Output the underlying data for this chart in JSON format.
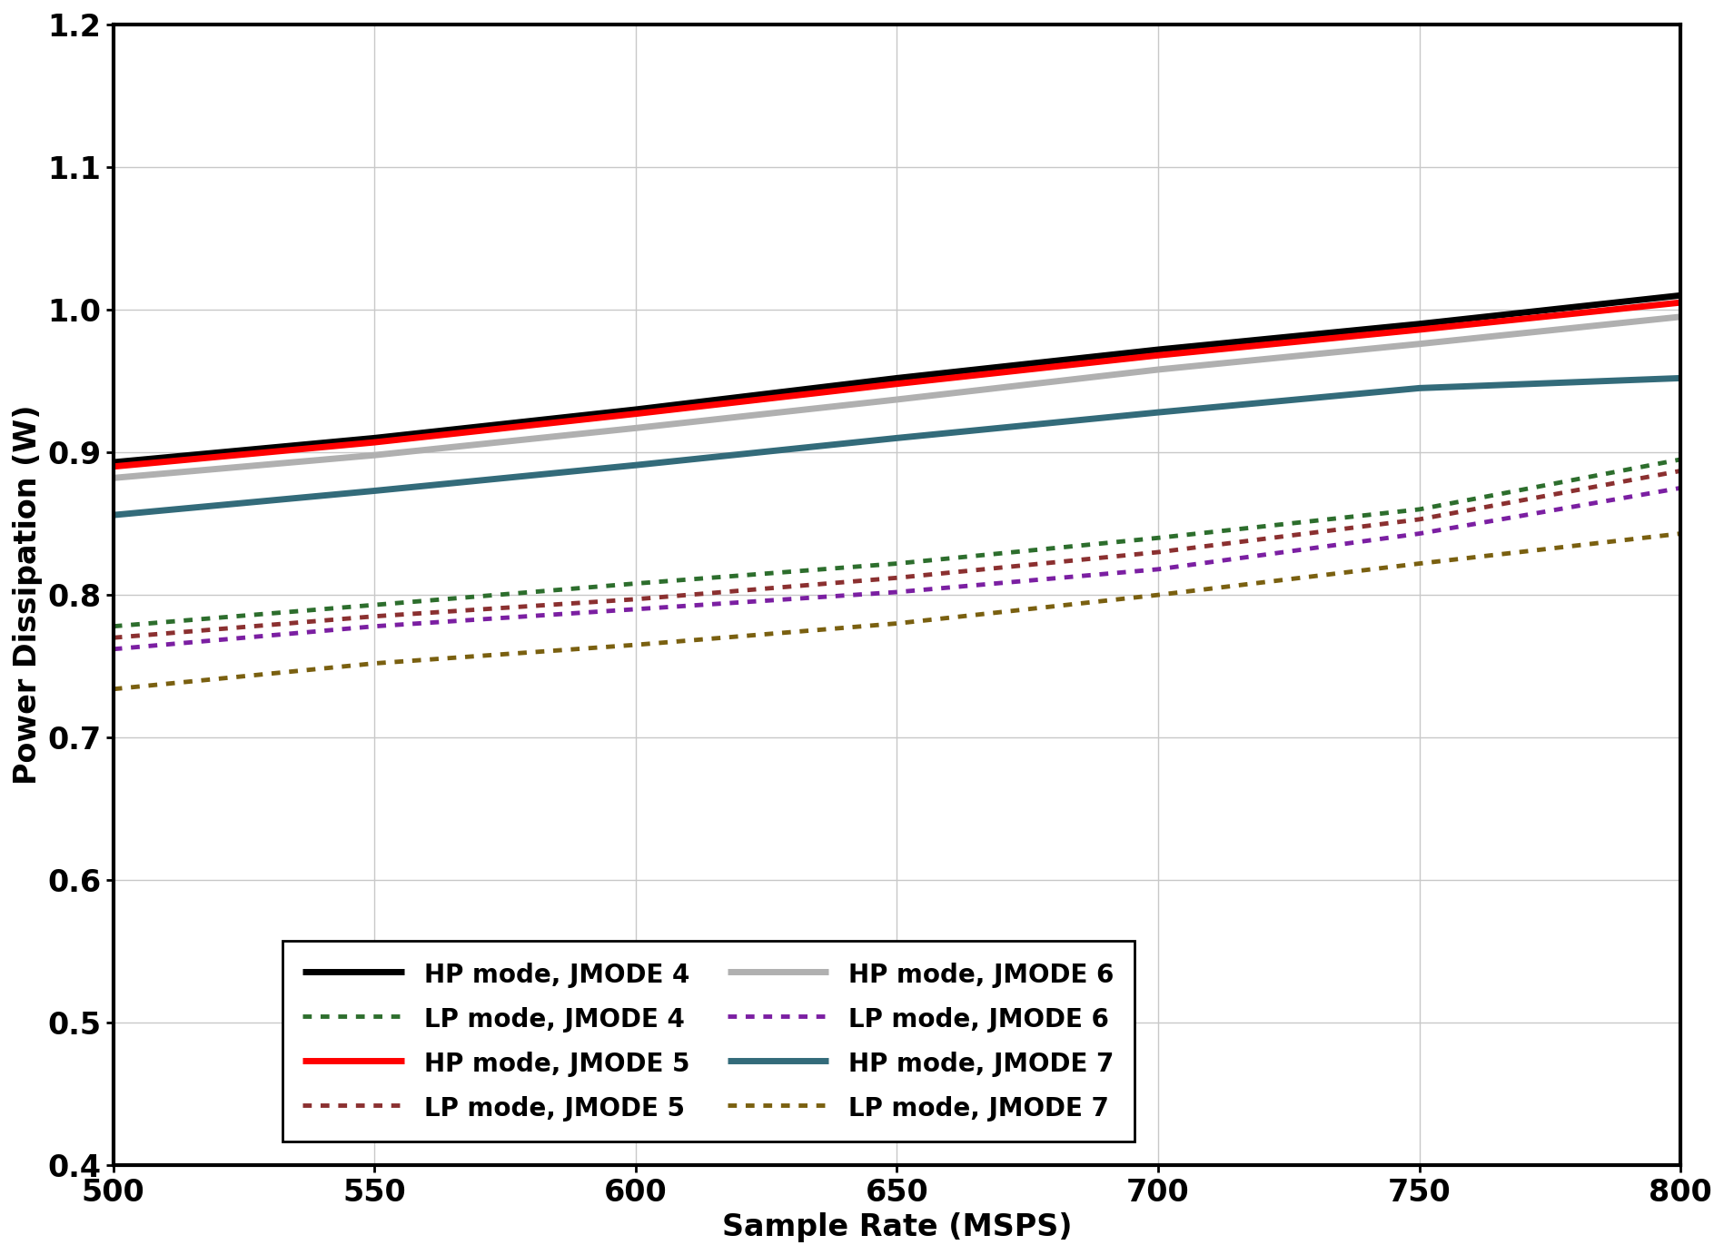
{
  "x": [
    500,
    550,
    600,
    650,
    700,
    750,
    800
  ],
  "hp_jmode4": [
    0.893,
    0.91,
    0.93,
    0.952,
    0.972,
    0.99,
    1.01
  ],
  "hp_jmode5": [
    0.89,
    0.907,
    0.927,
    0.948,
    0.968,
    0.986,
    1.005
  ],
  "hp_jmode6": [
    0.882,
    0.898,
    0.917,
    0.937,
    0.958,
    0.976,
    0.995
  ],
  "hp_jmode7": [
    0.856,
    0.873,
    0.891,
    0.91,
    0.928,
    0.945,
    0.952
  ],
  "lp_jmode4": [
    0.778,
    0.793,
    0.808,
    0.822,
    0.84,
    0.86,
    0.895
  ],
  "lp_jmode5": [
    0.77,
    0.785,
    0.797,
    0.812,
    0.83,
    0.853,
    0.887
  ],
  "lp_jmode6": [
    0.762,
    0.778,
    0.79,
    0.802,
    0.818,
    0.843,
    0.875
  ],
  "lp_jmode7": [
    0.734,
    0.752,
    0.765,
    0.78,
    0.8,
    0.822,
    0.843
  ],
  "hp_colors": [
    "#000000",
    "#ff0000",
    "#b0b0b0",
    "#336b7a"
  ],
  "lp_colors": [
    "#2d6e2d",
    "#8b3030",
    "#7b1fa2",
    "#7a6010"
  ],
  "hp_labels": [
    "HP mode, JMODE 4",
    "HP mode, JMODE 5",
    "HP mode, JMODE 6",
    "HP mode, JMODE 7"
  ],
  "lp_labels": [
    "LP mode, JMODE 4",
    "LP mode, JMODE 5",
    "LP mode, JMODE 6",
    "LP mode, JMODE 7"
  ],
  "xlabel": "Sample Rate (MSPS)",
  "ylabel": "Power Dissipation (W)",
  "xlim": [
    500,
    800
  ],
  "ylim": [
    0.4,
    1.2
  ],
  "xticks": [
    500,
    550,
    600,
    650,
    700,
    750,
    800
  ],
  "yticks": [
    0.4,
    0.5,
    0.6,
    0.7,
    0.8,
    0.9,
    1.0,
    1.1,
    1.2
  ],
  "linewidth_hp": 5.0,
  "linewidth_lp": 3.5,
  "label_fontsize": 24,
  "tick_fontsize": 24,
  "legend_fontsize": 20,
  "background_color": "#ffffff",
  "grid_color": "#c8c8c8"
}
